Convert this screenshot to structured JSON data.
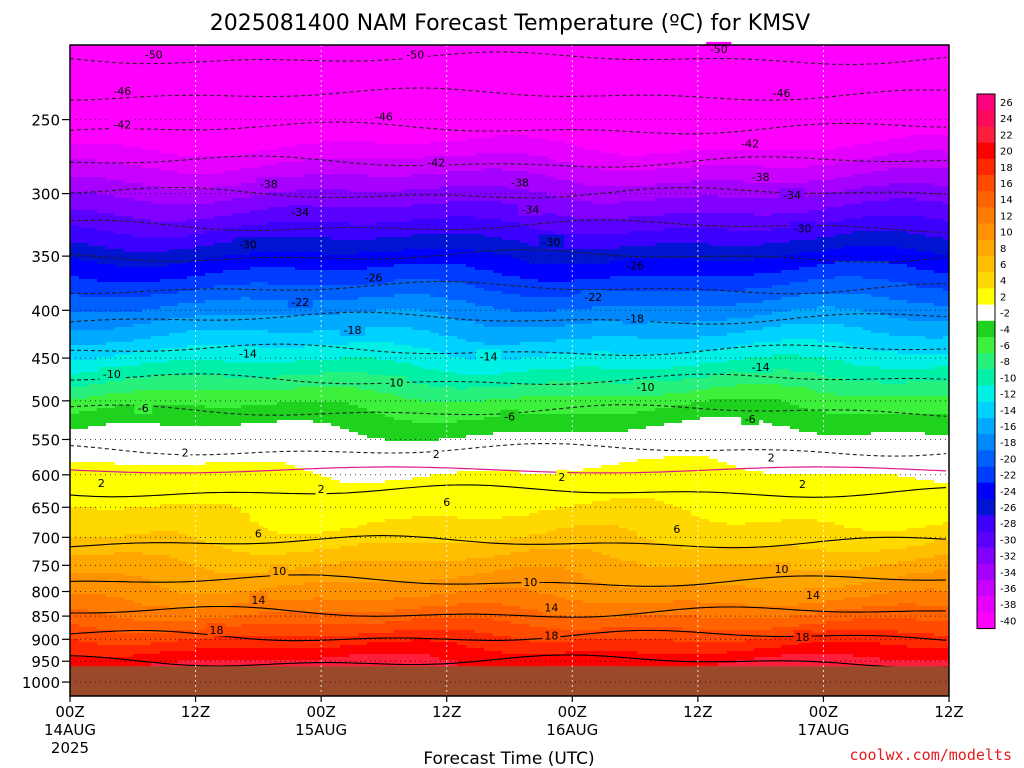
{
  "chart_data": {
    "type": "heatmap",
    "title": "2025081400 NAM Forecast Temperature (ºC) for KMSV",
    "xlabel": "Forecast Time (UTC)",
    "ylabel": "",
    "credit": "coolwx.com/modelts",
    "x_ticks": [
      "00Z",
      "12Z",
      "00Z",
      "12Z",
      "00Z",
      "12Z",
      "00Z",
      "12Z"
    ],
    "x_dates": [
      "14AUG",
      "15AUG",
      "16AUG",
      "17AUG"
    ],
    "x_year": "2025",
    "x_range_hours": [
      0,
      84
    ],
    "y_ticks": [
      250,
      300,
      350,
      400,
      450,
      500,
      550,
      600,
      650,
      700,
      750,
      800,
      850,
      900,
      950,
      1000
    ],
    "y_range_hpa": [
      1035,
      208
    ],
    "ground_pressure_hpa": 962,
    "colorbar_labels": [
      26,
      24,
      22,
      20,
      18,
      16,
      14,
      12,
      10,
      8,
      6,
      4,
      2,
      -2,
      -4,
      -6,
      -8,
      -10,
      -12,
      -14,
      -16,
      -18,
      -20,
      -22,
      -24,
      -26,
      -28,
      -30,
      -32,
      -34,
      -36,
      -38,
      -40
    ],
    "colorbar_colors": [
      "#ff0080",
      "#ff0a5a",
      "#ff1e3c",
      "#ff0000",
      "#ff2800",
      "#ff4a00",
      "#ff6400",
      "#ff7c00",
      "#ff9200",
      "#ffa600",
      "#ffbe00",
      "#ffd800",
      "#ffff00",
      "#ffffff",
      "#1ed21e",
      "#3cf03c",
      "#28f07c",
      "#00f0a8",
      "#00f0e6",
      "#00d2ff",
      "#00aaff",
      "#0088ff",
      "#0060ff",
      "#003cff",
      "#0000ff",
      "#0014d2",
      "#3c00ff",
      "#5a00ff",
      "#8200ff",
      "#a600ff",
      "#c800ff",
      "#e600ff",
      "#ff00ff"
    ],
    "profile_levels_hpa": [
      1000,
      950,
      900,
      850,
      800,
      750,
      700,
      650,
      600,
      550,
      500,
      450,
      400,
      350,
      300,
      250,
      210
    ],
    "profile_temps_c": [
      24,
      22,
      18.5,
      14.5,
      11,
      8.5,
      5.5,
      3.5,
      0.5,
      -3,
      -7,
      -13,
      -19,
      -26,
      -34,
      -43,
      -51
    ],
    "contour_labels": [
      {
        "text": "-50",
        "t": 8,
        "p": 213
      },
      {
        "text": "-50",
        "t": 33,
        "p": 213
      },
      {
        "text": "-50",
        "t": 62,
        "p": 210
      },
      {
        "text": "-46",
        "t": 5,
        "p": 233
      },
      {
        "text": "-46",
        "t": 30,
        "p": 248
      },
      {
        "text": "-46",
        "t": 68,
        "p": 234
      },
      {
        "text": "-42",
        "t": 5,
        "p": 253
      },
      {
        "text": "-42",
        "t": 35,
        "p": 278
      },
      {
        "text": "-42",
        "t": 65,
        "p": 265
      },
      {
        "text": "-38",
        "t": 19,
        "p": 293
      },
      {
        "text": "-38",
        "t": 43,
        "p": 292
      },
      {
        "text": "-38",
        "t": 66,
        "p": 288
      },
      {
        "text": "-34",
        "t": 22,
        "p": 314
      },
      {
        "text": "-34",
        "t": 44,
        "p": 312
      },
      {
        "text": "-34",
        "t": 69,
        "p": 301
      },
      {
        "text": "-30",
        "t": 17,
        "p": 340
      },
      {
        "text": "-30",
        "t": 46,
        "p": 338
      },
      {
        "text": "-30",
        "t": 70,
        "p": 327
      },
      {
        "text": "-26",
        "t": 29,
        "p": 369
      },
      {
        "text": "-26",
        "t": 54,
        "p": 358
      },
      {
        "text": "-22",
        "t": 22,
        "p": 392
      },
      {
        "text": "-22",
        "t": 50,
        "p": 387
      },
      {
        "text": "-18",
        "t": 27,
        "p": 420
      },
      {
        "text": "-18",
        "t": 54,
        "p": 408
      },
      {
        "text": "-14",
        "t": 17,
        "p": 445
      },
      {
        "text": "-14",
        "t": 40,
        "p": 448
      },
      {
        "text": "-14",
        "t": 66,
        "p": 460
      },
      {
        "text": "-10",
        "t": 4,
        "p": 468
      },
      {
        "text": "-10",
        "t": 31,
        "p": 478
      },
      {
        "text": "-10",
        "t": 55,
        "p": 483
      },
      {
        "text": "-6",
        "t": 7,
        "p": 509
      },
      {
        "text": "-6",
        "t": 42,
        "p": 520
      },
      {
        "text": "-6",
        "t": 65,
        "p": 523
      },
      {
        "text": "2",
        "t": 11,
        "p": 568
      },
      {
        "text": "2",
        "t": 35,
        "p": 570
      },
      {
        "text": "2",
        "t": 67,
        "p": 575
      },
      {
        "text": "2",
        "t": 3,
        "p": 612
      },
      {
        "text": "2",
        "t": 24,
        "p": 621
      },
      {
        "text": "2",
        "t": 47,
        "p": 603
      },
      {
        "text": "2",
        "t": 70,
        "p": 614
      },
      {
        "text": "6",
        "t": 36,
        "p": 642
      },
      {
        "text": "6",
        "t": 18,
        "p": 693
      },
      {
        "text": "6",
        "t": 58,
        "p": 686
      },
      {
        "text": "10",
        "t": 20,
        "p": 761
      },
      {
        "text": "10",
        "t": 44,
        "p": 781
      },
      {
        "text": "10",
        "t": 68,
        "p": 757
      },
      {
        "text": "14",
        "t": 18,
        "p": 817
      },
      {
        "text": "14",
        "t": 46,
        "p": 832
      },
      {
        "text": "14",
        "t": 71,
        "p": 807
      },
      {
        "text": "18",
        "t": 14,
        "p": 880
      },
      {
        "text": "18",
        "t": 46,
        "p": 892
      },
      {
        "text": "18",
        "t": 70,
        "p": 895
      }
    ]
  },
  "colors": {
    "ground": "#9a4a2a",
    "contour_below_zero": "#222222",
    "contour_above_zero": "#000000",
    "zero_line": "#e0198a",
    "credit": "#e41a1c"
  }
}
